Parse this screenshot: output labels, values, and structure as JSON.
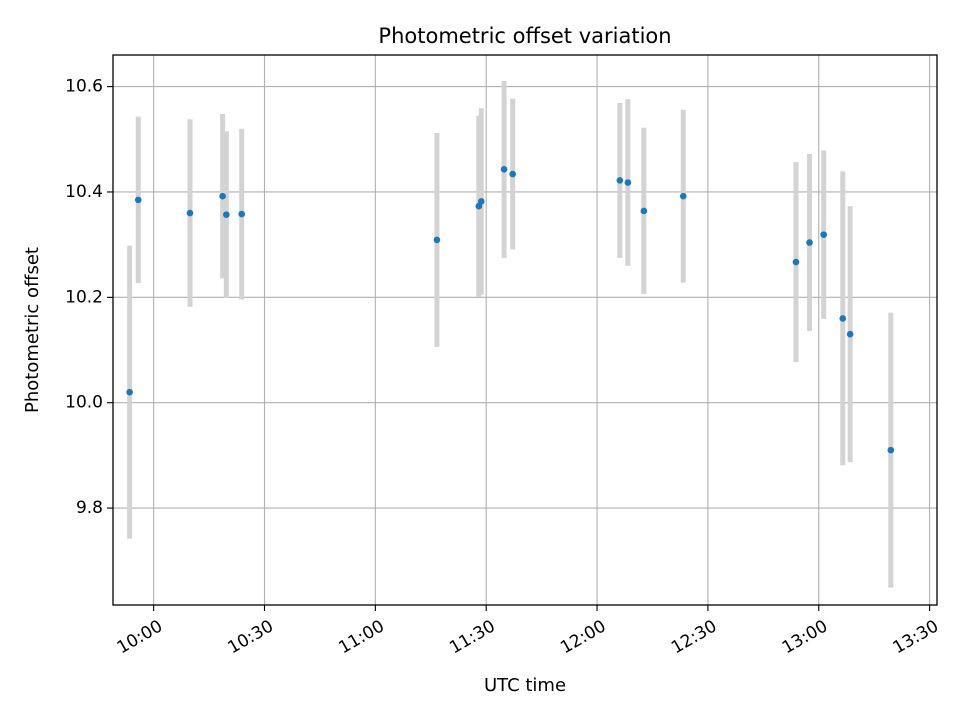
{
  "chart_data": {
    "type": "scatter",
    "title": "Photometric offset variation",
    "xlabel": "UTC time",
    "ylabel": "Photometric offset",
    "x_ticks": [
      "10:00",
      "10:30",
      "11:00",
      "11:30",
      "12:00",
      "12:30",
      "13:00",
      "13:30"
    ],
    "y_ticks": [
      "9.8",
      "10.0",
      "10.2",
      "10.4",
      "10.6"
    ],
    "xlim": [
      "09:49",
      "13:32"
    ],
    "ylim": [
      9.616,
      10.66
    ],
    "grid": true,
    "point_color": "#1f77b4",
    "errorbar_color": "#d3d3d3",
    "points": [
      {
        "t": "09:53:30",
        "y": 10.02,
        "err": 0.278
      },
      {
        "t": "09:55:50",
        "y": 10.385,
        "err": 0.158
      },
      {
        "t": "10:09:50",
        "y": 10.36,
        "err": 0.178
      },
      {
        "t": "10:18:40",
        "y": 10.392,
        "err": 0.156
      },
      {
        "t": "10:19:40",
        "y": 10.357,
        "err": 0.158
      },
      {
        "t": "10:23:50",
        "y": 10.358,
        "err": 0.162
      },
      {
        "t": "11:16:40",
        "y": 10.309,
        "err": 0.203
      },
      {
        "t": "11:28:00",
        "y": 10.373,
        "err": 0.172
      },
      {
        "t": "11:28:40",
        "y": 10.382,
        "err": 0.177
      },
      {
        "t": "11:34:50",
        "y": 10.443,
        "err": 0.168
      },
      {
        "t": "11:37:10",
        "y": 10.434,
        "err": 0.143
      },
      {
        "t": "12:06:10",
        "y": 10.422,
        "err": 0.147
      },
      {
        "t": "12:08:20",
        "y": 10.418,
        "err": 0.158
      },
      {
        "t": "12:12:40",
        "y": 10.364,
        "err": 0.158
      },
      {
        "t": "12:23:20",
        "y": 10.392,
        "err": 0.164
      },
      {
        "t": "12:53:50",
        "y": 10.267,
        "err": 0.19
      },
      {
        "t": "12:57:30",
        "y": 10.304,
        "err": 0.168
      },
      {
        "t": "13:01:20",
        "y": 10.319,
        "err": 0.16
      },
      {
        "t": "13:06:30",
        "y": 10.16,
        "err": 0.279
      },
      {
        "t": "13:08:30",
        "y": 10.13,
        "err": 0.243
      },
      {
        "t": "13:19:30",
        "y": 9.91,
        "err": 0.261
      }
    ]
  }
}
